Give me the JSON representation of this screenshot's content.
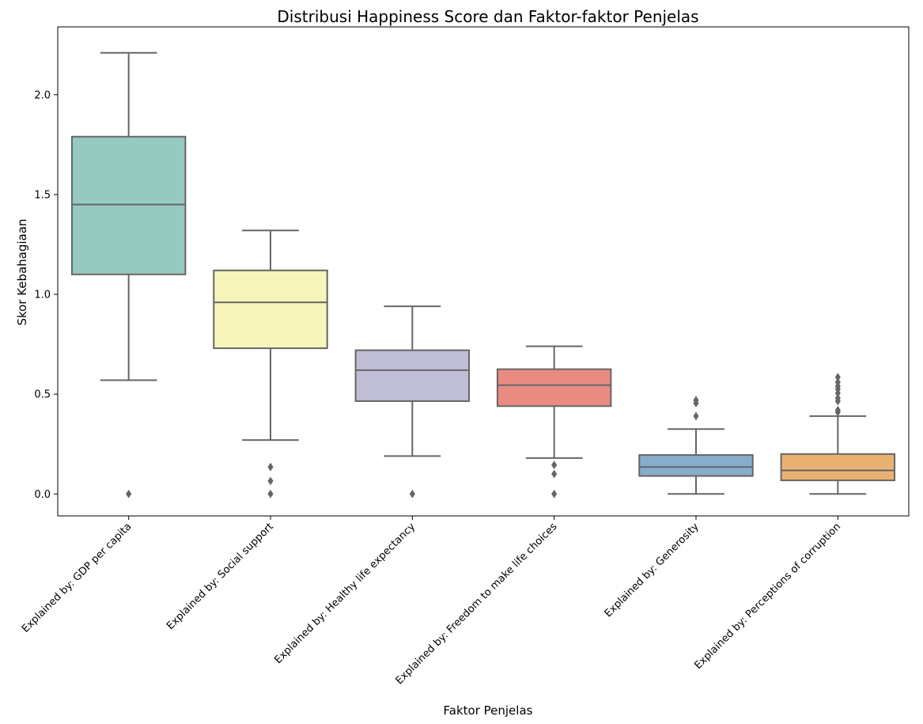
{
  "chart_data": {
    "type": "box",
    "title": "Distribusi Happiness Score dan Faktor-faktor Penjelas",
    "xlabel": "Faktor Penjelas",
    "ylabel": "Skor Kebahagiaan",
    "ylim": [
      -0.11,
      2.34
    ],
    "yticks": [
      0.0,
      0.5,
      1.0,
      1.5,
      2.0
    ],
    "ytick_labels": [
      "0.0",
      "0.5",
      "1.0",
      "1.5",
      "2.0"
    ],
    "grid": false,
    "categories": [
      "Explained by: GDP per capita",
      "Explained by: Social support",
      "Explained by: Healthy life expectancy",
      "Explained by: Freedom to make life choices",
      "Explained by: Generosity",
      "Explained by: Perceptions of corruption"
    ],
    "boxes": [
      {
        "whislo": 0.57,
        "q1": 1.1,
        "med": 1.45,
        "q3": 1.79,
        "whishi": 2.21,
        "fliers": [
          0.0
        ],
        "color": "#96c9c0"
      },
      {
        "whislo": 0.27,
        "q1": 0.73,
        "med": 0.96,
        "q3": 1.12,
        "whishi": 1.32,
        "fliers": [
          0.135,
          0.065,
          0.0
        ],
        "color": "#f6f5ba"
      },
      {
        "whislo": 0.19,
        "q1": 0.465,
        "med": 0.62,
        "q3": 0.72,
        "whishi": 0.94,
        "fliers": [
          0.0
        ],
        "color": "#c0bdd6"
      },
      {
        "whislo": 0.18,
        "q1": 0.44,
        "med": 0.545,
        "q3": 0.625,
        "whishi": 0.74,
        "fliers": [
          0.145,
          0.1,
          0.0
        ],
        "color": "#ea8b82"
      },
      {
        "whislo": 0.0,
        "q1": 0.09,
        "med": 0.135,
        "q3": 0.195,
        "whishi": 0.325,
        "fliers": [
          0.47,
          0.455,
          0.39
        ],
        "color": "#86adcb"
      },
      {
        "whislo": 0.0,
        "q1": 0.068,
        "med": 0.118,
        "q3": 0.2,
        "whishi": 0.39,
        "fliers": [
          0.585,
          0.56,
          0.54,
          0.525,
          0.505,
          0.48,
          0.465,
          0.42,
          0.41
        ],
        "color": "#eab272"
      }
    ]
  }
}
